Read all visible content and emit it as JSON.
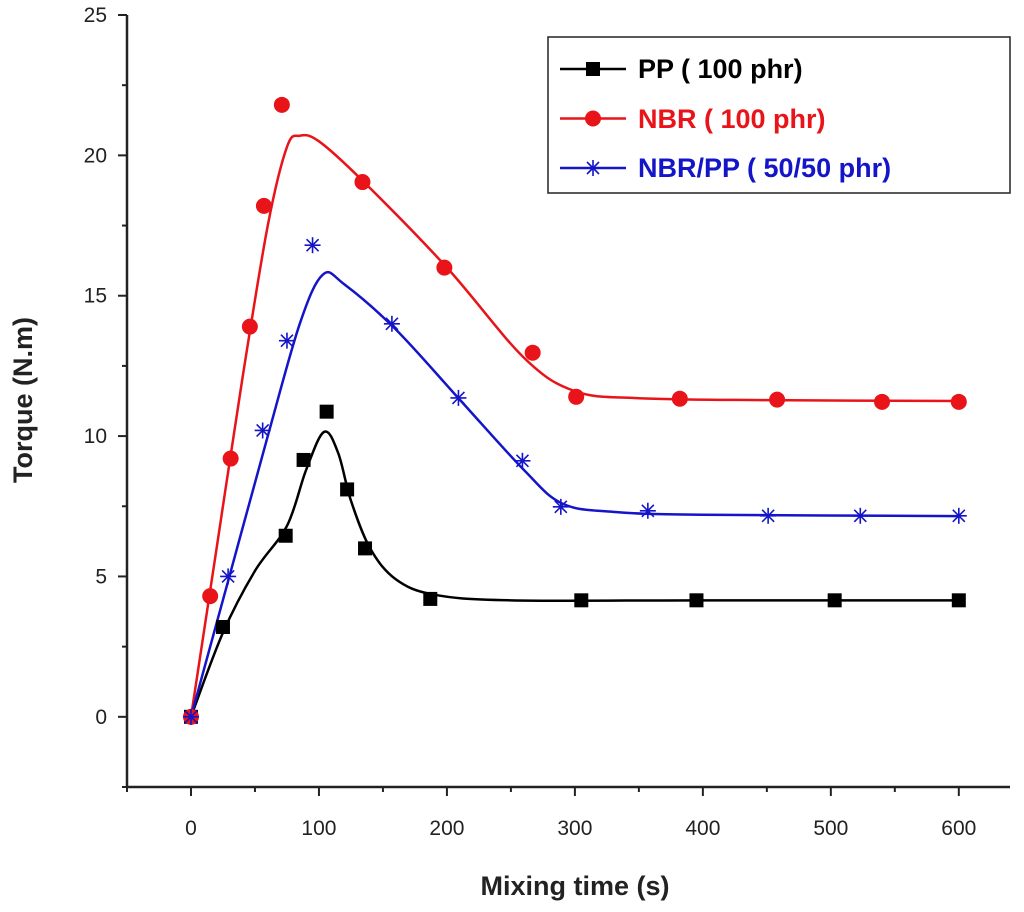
{
  "chart_data": {
    "type": "line",
    "title": "",
    "xlabel": "Mixing time (s)",
    "ylabel": "Torque (N.m)",
    "xlim": [
      -50,
      640
    ],
    "ylim": [
      -2.5,
      25
    ],
    "xticks": [
      0,
      100,
      200,
      300,
      400,
      500,
      600
    ],
    "yticks": [
      0,
      5,
      10,
      15,
      20,
      25
    ],
    "grid": false,
    "legend_position": "top-right",
    "series": [
      {
        "name": "PP ( 100 phr)",
        "color": "#000000",
        "marker": "square",
        "points": [
          [
            0,
            0
          ],
          [
            25,
            3.2
          ],
          [
            74,
            6.45
          ],
          [
            88,
            9.15
          ],
          [
            106,
            10.87
          ],
          [
            122,
            8.1
          ],
          [
            136,
            6.0
          ],
          [
            187,
            4.2
          ],
          [
            305,
            4.15
          ],
          [
            395,
            4.15
          ],
          [
            503,
            4.15
          ],
          [
            600,
            4.15
          ]
        ],
        "fit": [
          [
            0,
            0
          ],
          [
            25,
            3.0
          ],
          [
            50,
            5.2
          ],
          [
            75,
            6.8
          ],
          [
            90,
            8.8
          ],
          [
            104,
            10.15
          ],
          [
            115,
            9.4
          ],
          [
            125,
            7.7
          ],
          [
            140,
            6.0
          ],
          [
            160,
            4.9
          ],
          [
            190,
            4.35
          ],
          [
            250,
            4.15
          ],
          [
            400,
            4.15
          ],
          [
            600,
            4.15
          ]
        ]
      },
      {
        "name": "NBR ( 100 phr)",
        "color": "#e8141a",
        "marker": "circle",
        "points": [
          [
            0,
            0
          ],
          [
            15,
            4.3
          ],
          [
            31,
            9.2
          ],
          [
            46,
            13.9
          ],
          [
            57,
            18.2
          ],
          [
            71,
            21.8
          ],
          [
            134,
            19.05
          ],
          [
            198,
            16.0
          ],
          [
            267,
            12.97
          ],
          [
            301,
            11.4
          ],
          [
            382,
            11.33
          ],
          [
            458,
            11.3
          ],
          [
            540,
            11.22
          ],
          [
            600,
            11.22
          ]
        ],
        "fit": [
          [
            0,
            0
          ],
          [
            20,
            6
          ],
          [
            40,
            12
          ],
          [
            60,
            17.5
          ],
          [
            75,
            20.3
          ],
          [
            85,
            20.7
          ],
          [
            100,
            20.5
          ],
          [
            134,
            19.1
          ],
          [
            200,
            16
          ],
          [
            260,
            12.8
          ],
          [
            300,
            11.6
          ],
          [
            350,
            11.35
          ],
          [
            450,
            11.28
          ],
          [
            600,
            11.25
          ]
        ]
      },
      {
        "name": "NBR/PP ( 50/50 phr)",
        "color": "#1414c8",
        "marker": "asterisk",
        "points": [
          [
            0,
            0
          ],
          [
            29,
            5.0
          ],
          [
            56,
            10.2
          ],
          [
            75,
            13.4
          ],
          [
            95,
            16.8
          ],
          [
            157,
            14.0
          ],
          [
            209,
            11.36
          ],
          [
            259,
            9.12
          ],
          [
            289,
            7.48
          ],
          [
            357,
            7.34
          ],
          [
            451,
            7.16
          ],
          [
            523,
            7.16
          ],
          [
            600,
            7.16
          ]
        ],
        "fit": [
          [
            0,
            0
          ],
          [
            30,
            5
          ],
          [
            60,
            10
          ],
          [
            85,
            14
          ],
          [
            103,
            15.75
          ],
          [
            120,
            15.4
          ],
          [
            160,
            13.8
          ],
          [
            210,
            11.3
          ],
          [
            260,
            8.8
          ],
          [
            290,
            7.6
          ],
          [
            330,
            7.3
          ],
          [
            400,
            7.2
          ],
          [
            600,
            7.15
          ]
        ]
      }
    ]
  }
}
